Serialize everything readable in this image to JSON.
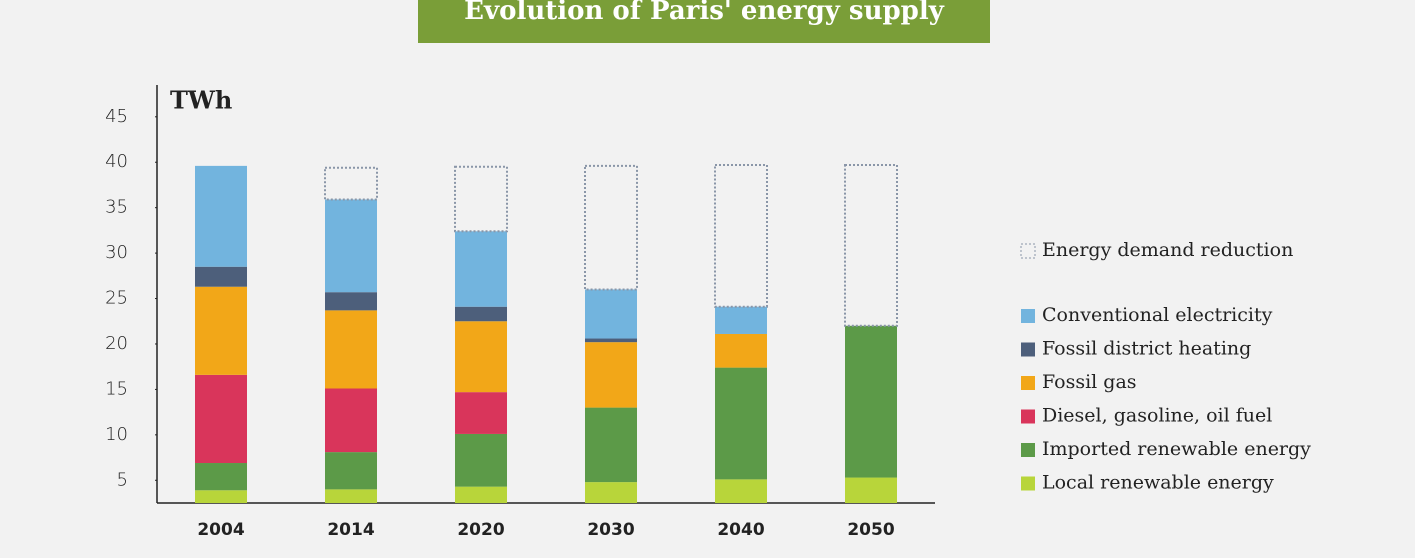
{
  "chart_data": {
    "type": "stacked_bar",
    "title": "Evolution of Paris' energy supply",
    "y_label": "TWh",
    "categories": [
      "2004",
      "2014",
      "2020",
      "2030",
      "2040",
      "2050"
    ],
    "ylim": [
      2.5,
      48.5
    ],
    "yticks": [
      5,
      10,
      15,
      20,
      25,
      30,
      35,
      40,
      45
    ],
    "series": [
      {
        "name": "Local renewable energy",
        "color": "#b8d53a",
        "values": [
          3.9,
          4.0,
          4.3,
          4.8,
          5.1,
          5.3
        ]
      },
      {
        "name": "Imported renewable energy",
        "color": "#5c9a48",
        "values": [
          3.0,
          4.1,
          5.8,
          8.2,
          12.3,
          16.7
        ]
      },
      {
        "name": "Diesel, gasoline, oil fuel",
        "color": "#d9355b",
        "values": [
          9.7,
          7.0,
          4.6,
          0,
          0,
          0
        ]
      },
      {
        "name": "Fossil gas",
        "color": "#f2a718",
        "values": [
          9.7,
          8.6,
          7.8,
          7.2,
          3.7,
          0
        ]
      },
      {
        "name": "Fossil district heating",
        "color": "#4d5f7b",
        "values": [
          2.2,
          2.0,
          1.6,
          0.4,
          0,
          0
        ]
      },
      {
        "name": "Conventional electricity",
        "color": "#72b4de",
        "values": [
          11.1,
          10.2,
          8.3,
          5.4,
          3.0,
          0
        ]
      },
      {
        "name": "Energy demand reduction",
        "color": "#8a96a8",
        "values": [
          0,
          3.5,
          7.1,
          13.6,
          15.6,
          17.7
        ]
      }
    ]
  }
}
